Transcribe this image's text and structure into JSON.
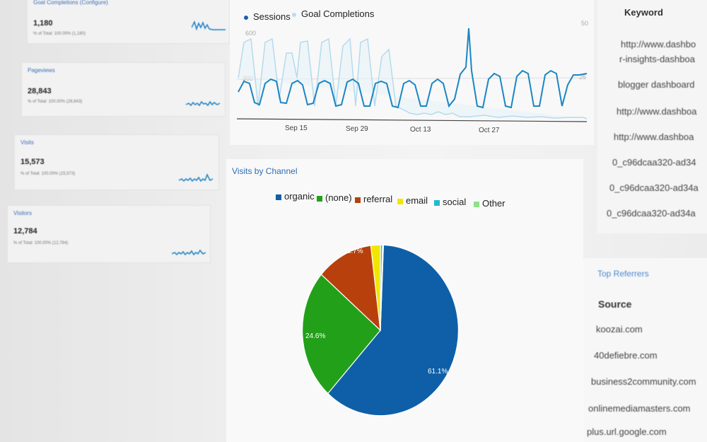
{
  "metrics": [
    {
      "label": "Goal Completions (Configure)",
      "value": "1,180",
      "sub": "% of Total: 100.00% (1,180)"
    },
    {
      "label": "Pageviews",
      "value": "28,843",
      "sub": "% of Total: 100.00% (28,843)"
    },
    {
      "label": "Visits",
      "value": "15,573",
      "sub": "% of Total: 100.00% (15,573)"
    },
    {
      "label": "Visitors",
      "value": "12,784",
      "sub": "% of Total: 100.00% (12,784)"
    }
  ],
  "line_chart": {
    "legend": {
      "sessions": "Sessions",
      "goals": "Goal Completions"
    },
    "y_left": [
      "600",
      "300"
    ],
    "y_right": [
      "50",
      "25"
    ],
    "x_ticks": [
      "Sep 15",
      "Sep 29",
      "Oct 13",
      "Oct 27"
    ],
    "colors": {
      "sessions": "#1a86c4",
      "goals": "#a8d8ea"
    }
  },
  "pie": {
    "title": "Visits by Channel",
    "legend": [
      {
        "label": "organic",
        "color": "#0f5fa8"
      },
      {
        "label": "(none)",
        "color": "#23a019"
      },
      {
        "label": "referral",
        "color": "#b8400c"
      },
      {
        "label": "email",
        "color": "#f2e600"
      },
      {
        "label": "social",
        "color": "#21b8d8"
      },
      {
        "label": "Other",
        "color": "#8ee28a"
      }
    ],
    "labels": {
      "organic": "61.1%",
      "none": "24.6%",
      "referral": "11.7%"
    }
  },
  "chart_data": {
    "type": "pie",
    "title": "Visits by Channel",
    "categories": [
      "organic",
      "(none)",
      "referral",
      "email",
      "social",
      "Other"
    ],
    "values": [
      61.1,
      24.6,
      11.7,
      2.0,
      0.4,
      0.2
    ]
  },
  "keywords": {
    "header": "Keyword",
    "items": [
      "http://www.dashbo",
      "r-insights-dashboa",
      "blogger dashboard",
      "http://www.dashboa",
      "http://www.dashboa",
      "0_c96dcaa320-ad34",
      "0_c96dcaa320-ad34a",
      "0_c96dcaa320-ad34a"
    ]
  },
  "referrers": {
    "title": "Top Referrers",
    "header": "Source",
    "items": [
      "koozai.com",
      "40defiebre.com",
      "business2community.com",
      "onlinemediamasters.com",
      "plus.url.google.com"
    ]
  }
}
